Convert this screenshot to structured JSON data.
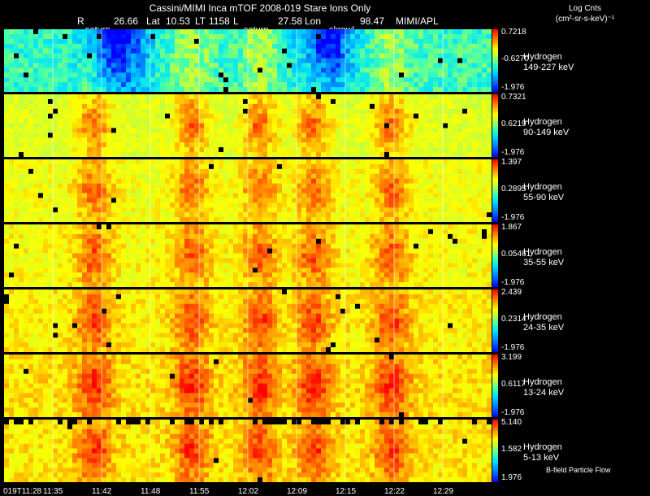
{
  "header": {
    "title": "Cassini/MIMI Inca mTOF  2008-019   Stare   Ions Only",
    "r_label": "R",
    "r_value": "26.66",
    "lat_label": "Lat",
    "lat_value": "10.53",
    "lt_label": "LT",
    "lt_value": "1158",
    "l_label": "L",
    "l_value": "27.58",
    "lon_label": "Lon",
    "lon_value": "98.47",
    "instrument": "MIMI/APL",
    "saturn_1": "saturn",
    "saturn_2": "saturn",
    "skrowl": "skrowl"
  },
  "units": {
    "line1": "Log Cnts",
    "line2": "(cm²-sr-s-keV)⁻¹"
  },
  "footer": {
    "bfield": "B-field Particle Flow"
  },
  "chart_data": {
    "type": "heatmap",
    "title": "Cassini/MIMI Inca mTOF  2008-019   Stare   Ions Only",
    "x_tick_labels": [
      "019T11:28",
      "11:35",
      "11:42",
      "11:48",
      "11:55",
      "12:02",
      "12:09",
      "12:15",
      "12:22",
      "12:29"
    ],
    "colorscale": [
      "#0000ff",
      "#0080ff",
      "#00e0ff",
      "#40ffb0",
      "#c0ff40",
      "#ffff00",
      "#ff8000",
      "#ff0000"
    ],
    "panels": [
      {
        "species": "Hydrogen",
        "energy": "149-227 keV",
        "cmax": "0.7218",
        "cmid": "-0.6270",
        "cmin": "-1.976",
        "base": 0.4,
        "contrast": 0.55
      },
      {
        "species": "Hydrogen",
        "energy": "90-149 keV",
        "cmax": "0.7321",
        "cmid": "0.6219",
        "cmin": "-1.976",
        "base": 0.64,
        "contrast": 0.25
      },
      {
        "species": "Hydrogen",
        "energy": "55-90 keV",
        "cmax": "1.397",
        "cmid": "0.2895",
        "cmin": "-1.976",
        "base": 0.68,
        "contrast": 0.22
      },
      {
        "species": "Hydrogen",
        "energy": "35-55 keV",
        "cmax": "1.867",
        "cmid": "0.05461",
        "cmin": "-1.976",
        "base": 0.7,
        "contrast": 0.22
      },
      {
        "species": "Hydrogen",
        "energy": "24-35 keV",
        "cmax": "2.439",
        "cmid": "0.2314",
        "cmin": "-1.976",
        "base": 0.72,
        "contrast": 0.22
      },
      {
        "species": "Hydrogen",
        "energy": "13-24 keV",
        "cmax": "3.199",
        "cmid": "0.6117",
        "cmin": "-1.976",
        "base": 0.74,
        "contrast": 0.24
      },
      {
        "species": "Hydrogen",
        "energy": "5-13 keV",
        "cmax": "5.140",
        "cmid": "1.582",
        "cmin": "1.976",
        "base": 0.73,
        "contrast": 0.22
      }
    ]
  }
}
